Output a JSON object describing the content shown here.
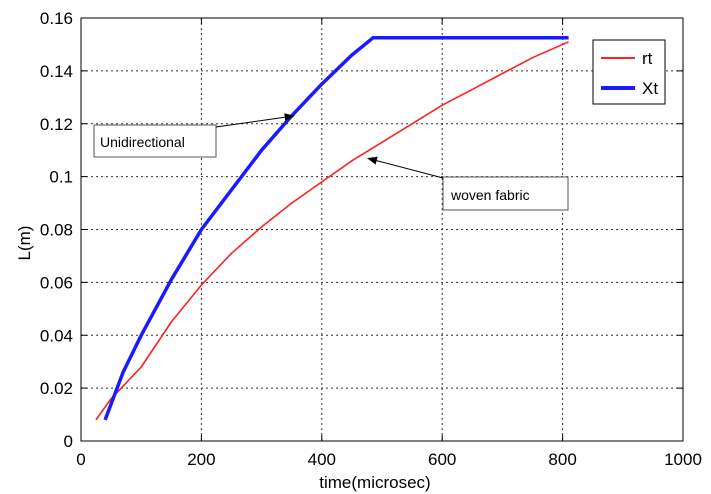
{
  "chart_data": {
    "type": "line",
    "title": "",
    "xlabel": "time(microsec)",
    "ylabel": "L(m)",
    "xlim": [
      0,
      1000
    ],
    "ylim": [
      0,
      0.16
    ],
    "xticks": [
      0,
      200,
      400,
      600,
      800,
      1000
    ],
    "yticks": [
      0,
      0.02,
      0.04,
      0.06,
      0.08,
      0.1,
      0.12,
      0.14,
      0.16
    ],
    "xtick_labels": [
      "0",
      "200",
      "400",
      "600",
      "800",
      "1000"
    ],
    "ytick_labels": [
      "0",
      "0.02",
      "0.04",
      "0.06",
      "0.08",
      "0.1",
      "0.12",
      "0.14",
      "0.16"
    ],
    "grid": true,
    "legend_position": "top-right",
    "series": [
      {
        "name": "rt",
        "color": "#ff2020",
        "x": [
          25,
          50,
          75,
          100,
          150,
          200,
          250,
          300,
          350,
          400,
          450,
          500,
          550,
          600,
          650,
          700,
          750,
          810
        ],
        "y": [
          0.008,
          0.016,
          0.022,
          0.028,
          0.045,
          0.059,
          0.071,
          0.081,
          0.09,
          0.098,
          0.106,
          0.113,
          0.12,
          0.127,
          0.133,
          0.139,
          0.145,
          0.151
        ]
      },
      {
        "name": "Xt",
        "color": "#1a1aff",
        "x": [
          40,
          50,
          70,
          100,
          150,
          200,
          250,
          300,
          350,
          400,
          450,
          485,
          550,
          650,
          810
        ],
        "y": [
          0.008,
          0.014,
          0.026,
          0.04,
          0.061,
          0.08,
          0.095,
          0.11,
          0.123,
          0.135,
          0.146,
          0.1525,
          0.1525,
          0.1525,
          0.1525
        ]
      }
    ],
    "annotations": [
      {
        "text": "Unidirectional",
        "point": [
          355,
          0.123
        ]
      },
      {
        "text": "woven fabric",
        "point": [
          475,
          0.107
        ]
      }
    ]
  }
}
